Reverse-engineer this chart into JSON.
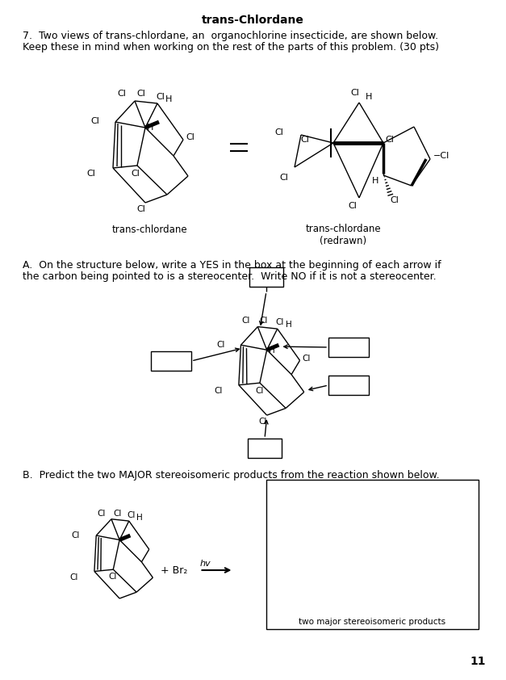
{
  "title": "trans-Chlordane",
  "background": "#ffffff",
  "page_number": "11",
  "section7_text_line1": "7.  Two views of trans-chlordane, an  organochlorine insecticide, are shown below.",
  "section7_text_line2": "Keep these in mind when working on the rest of the parts of this problem. (30 pts)",
  "label_trans_chlordane": "trans-chlordane",
  "label_trans_chlordane_redrawn": "trans-chlordane\n(redrawn)",
  "sectionA_text_line1": "A.  On the structure below, write a YES in the box at the beginning of each arrow if",
  "sectionA_text_line2": "the carbon being pointed to is a stereocenter.  Write NO if it is not a stereocenter.",
  "sectionB_text": "B.  Predict the two MAJOR stereoisomeric products from the reaction shown below.",
  "box_label": "two major stereoisomeric products"
}
